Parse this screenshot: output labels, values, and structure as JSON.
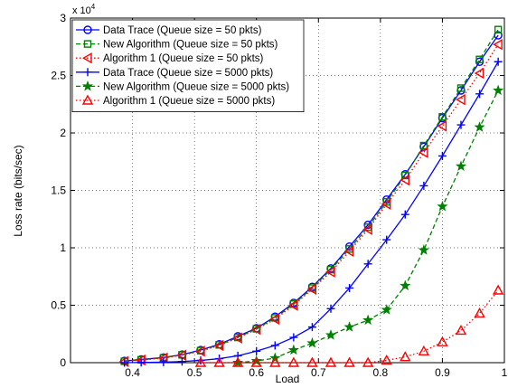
{
  "chart_data": {
    "type": "line",
    "xlabel": "Load",
    "ylabel": "Loss rate (bits/sec)",
    "y_exponent_label": "x 10",
    "y_exponent_power": "4",
    "xlim": [
      0.3,
      1.0
    ],
    "ylim": [
      0,
      30000
    ],
    "x_ticks": [
      {
        "value": 0.4,
        "label": "0.4"
      },
      {
        "value": 0.5,
        "label": "0.5"
      },
      {
        "value": 0.6,
        "label": "0.6"
      },
      {
        "value": 0.7,
        "label": "0.7"
      },
      {
        "value": 0.8,
        "label": "0.8"
      },
      {
        "value": 0.9,
        "label": "0.9"
      },
      {
        "value": 1.0,
        "label": "1"
      }
    ],
    "y_ticks": [
      {
        "value": 0,
        "label": "0"
      },
      {
        "value": 5000,
        "label": "0.5"
      },
      {
        "value": 10000,
        "label": "1"
      },
      {
        "value": 15000,
        "label": "1.5"
      },
      {
        "value": 20000,
        "label": "2"
      },
      {
        "value": 25000,
        "label": "2.5"
      },
      {
        "value": 30000,
        "label": "3"
      }
    ],
    "grid": true,
    "legend_position": "top-left",
    "series": [
      {
        "name": "Data Trace (Queue size = 50 pkts)",
        "color": "#0000ff",
        "marker": "circle",
        "line_style": "solid",
        "x": [
          0.387,
          0.414,
          0.45,
          0.48,
          0.51,
          0.54,
          0.57,
          0.6,
          0.63,
          0.66,
          0.69,
          0.72,
          0.75,
          0.78,
          0.81,
          0.84,
          0.87,
          0.9,
          0.93,
          0.96,
          0.99
        ],
        "y": [
          150,
          280,
          450,
          700,
          1100,
          1600,
          2300,
          3000,
          4000,
          5200,
          6600,
          8200,
          10100,
          12000,
          14200,
          16400,
          18800,
          21300,
          23700,
          26200,
          28500
        ]
      },
      {
        "name": "New Algorithm (Queue size = 50 pkts)",
        "color": "#008000",
        "marker": "square",
        "line_style": "dashed",
        "x": [
          0.387,
          0.414,
          0.45,
          0.48,
          0.51,
          0.54,
          0.57,
          0.6,
          0.63,
          0.66,
          0.69,
          0.72,
          0.75,
          0.78,
          0.81,
          0.84,
          0.87,
          0.9,
          0.93,
          0.96,
          0.99
        ],
        "y": [
          120,
          250,
          420,
          680,
          1050,
          1550,
          2200,
          2950,
          3900,
          5100,
          6500,
          8100,
          9900,
          11800,
          14000,
          16300,
          18900,
          21400,
          23900,
          26400,
          29000
        ]
      },
      {
        "name": "Algorithm 1 (Queue size = 50 pkts)",
        "color": "#ff0000",
        "marker": "triangle-left",
        "line_style": "dotted",
        "x": [
          0.387,
          0.414,
          0.45,
          0.48,
          0.51,
          0.54,
          0.57,
          0.6,
          0.63,
          0.66,
          0.69,
          0.72,
          0.75,
          0.78,
          0.81,
          0.84,
          0.87,
          0.9,
          0.93,
          0.96,
          0.99
        ],
        "y": [
          100,
          230,
          400,
          650,
          1000,
          1500,
          2150,
          2900,
          3800,
          5000,
          6400,
          7900,
          9700,
          11600,
          13800,
          15900,
          18300,
          20600,
          22900,
          25200,
          27700
        ]
      },
      {
        "name": "Data Trace (Queue size = 5000 pkts)",
        "color": "#0000ff",
        "marker": "plus",
        "line_style": "solid",
        "x": [
          0.387,
          0.414,
          0.45,
          0.48,
          0.51,
          0.54,
          0.57,
          0.6,
          0.63,
          0.66,
          0.69,
          0.72,
          0.75,
          0.78,
          0.81,
          0.84,
          0.87,
          0.9,
          0.93,
          0.96,
          0.99
        ],
        "y": [
          0,
          20,
          50,
          100,
          200,
          350,
          600,
          1000,
          1500,
          2200,
          3100,
          4700,
          6500,
          8600,
          10700,
          12900,
          15400,
          18000,
          20700,
          23400,
          26200
        ]
      },
      {
        "name": "New Algorithm (Queue size = 5000 pkts)",
        "color": "#008000",
        "marker": "star",
        "line_style": "dashed",
        "x": [
          0.57,
          0.6,
          0.63,
          0.66,
          0.69,
          0.72,
          0.75,
          0.78,
          0.81,
          0.84,
          0.87,
          0.9,
          0.93,
          0.96,
          0.99
        ],
        "y": [
          0,
          150,
          400,
          1100,
          1700,
          2400,
          3100,
          3700,
          4600,
          6700,
          9800,
          13600,
          17100,
          20500,
          23700
        ]
      },
      {
        "name": "Algorithm 1 (Queue size = 5000 pkts)",
        "color": "#ff0000",
        "marker": "triangle-up",
        "line_style": "dotted",
        "x": [
          0.51,
          0.54,
          0.57,
          0.6,
          0.63,
          0.66,
          0.69,
          0.72,
          0.75,
          0.78,
          0.81,
          0.84,
          0.87,
          0.9,
          0.93,
          0.96,
          0.99
        ],
        "y": [
          0,
          0,
          0,
          0,
          0,
          0,
          0,
          0,
          0,
          0,
          200,
          500,
          1000,
          1800,
          2800,
          4300,
          6300
        ]
      }
    ]
  }
}
